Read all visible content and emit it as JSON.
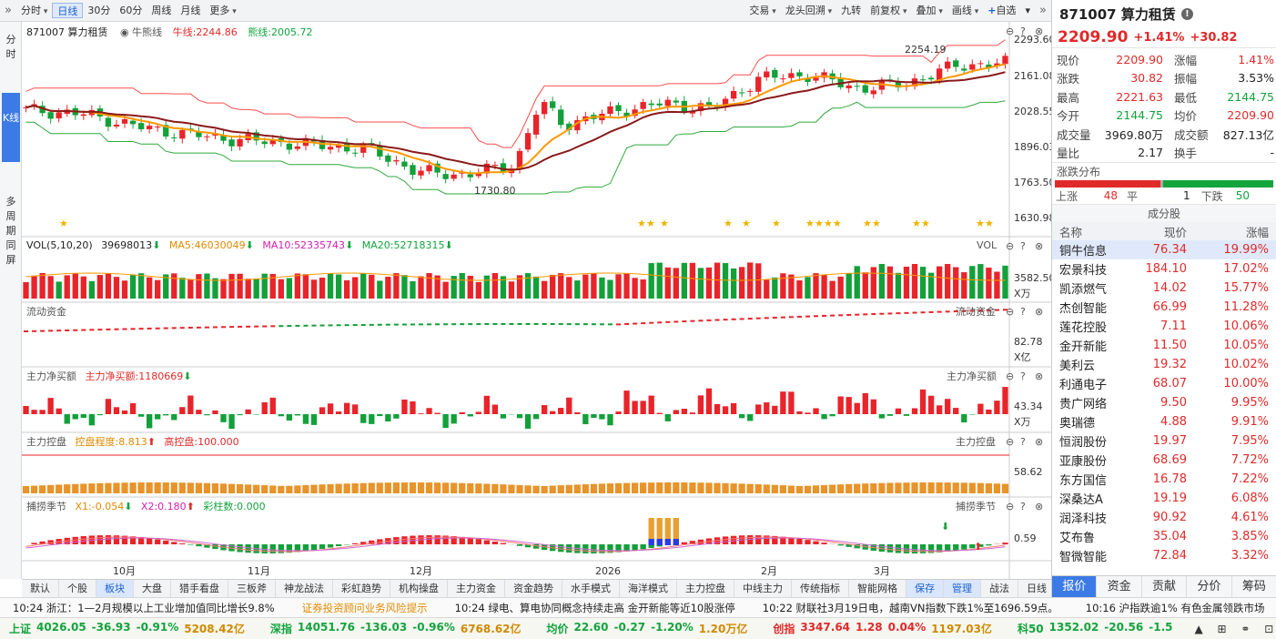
{
  "toolbar": {
    "left": [
      "分时",
      "日线",
      "30分",
      "60分",
      "周线",
      "月线",
      "更多"
    ],
    "active": "日线",
    "right": [
      "交易",
      "龙头回溯",
      "九转",
      "前复权",
      "叠加",
      "画线",
      "自选"
    ]
  },
  "left_tabs": {
    "t1": "分时",
    "t2": "K线",
    "t3": "多周期同屏"
  },
  "stock": {
    "code": "871007",
    "name": "算力租赁",
    "title": "871007 算力租赁",
    "price": "2209.90",
    "pct": "+1.41%",
    "chg": "+30.82"
  },
  "kline": {
    "legend_name": "871007 算力租赁",
    "indicator": "牛熊线",
    "bull_label": "牛线:2244.86",
    "bear_label": "熊线:2005.72",
    "high_label": "2254.19",
    "low_label": "1730.80",
    "yticks": [
      "2293.60",
      "2161.08",
      "2028.55",
      "1896.03",
      "1763.50",
      "1630.98"
    ]
  },
  "vol": {
    "title": "VOL(5,10,20)",
    "v": "39698013",
    "ma5": "MA5:46030049",
    "ma10": "MA10:52335743",
    "ma20": "MA20:52718315",
    "tag": "VOL",
    "tick": "3582.50",
    "unit": "X万"
  },
  "flow": {
    "title": "流动资金",
    "tag": "流动资金",
    "tick": "82.78",
    "unit": "X亿"
  },
  "netbuy": {
    "title": "主力净买额",
    "label": "主力净买额:1180669",
    "tag": "主力净买额",
    "tick": "43.34",
    "unit": "X万"
  },
  "control": {
    "title": "主力控盘",
    "degree": "控盘程度:8.813",
    "high": "高控盘:100.000",
    "tag": "主力控盘",
    "tick": "58.62"
  },
  "season": {
    "title": "捕捞季节",
    "x1": "X1:-0.054",
    "x2": "X2:0.180",
    "bars": "彩柱数:0.000",
    "tag": "捕捞季节",
    "tick": "0.59"
  },
  "xaxis": [
    "10月",
    "11月",
    "12月",
    "2026",
    "2月",
    "3月"
  ],
  "bottom_tabs": [
    "默认",
    "个股",
    "板块",
    "大盘",
    "猎手看盘",
    "三板斧",
    "神龙战法",
    "彩虹趋势",
    "机构操盘",
    "主力资金",
    "资金趋势",
    "水手模式",
    "海洋模式",
    "主力控盘",
    "中线主力",
    "传统指标",
    "智能网格"
  ],
  "bottom_active": "板块",
  "bottom_right": [
    "保存",
    "管理",
    "战法",
    "日线"
  ],
  "quote": [
    [
      "现价",
      "2209.90",
      "red",
      "涨幅",
      "1.41%",
      "red"
    ],
    [
      "涨跌",
      "30.82",
      "red",
      "振幅",
      "3.53%",
      "blk"
    ],
    [
      "最高",
      "2221.63",
      "red",
      "最低",
      "2144.75",
      "green"
    ],
    [
      "今开",
      "2144.75",
      "green",
      "均价",
      "2209.90",
      "red"
    ],
    [
      "成交量",
      "3969.80万",
      "blk",
      "成交额",
      "827.13亿",
      "blk"
    ],
    [
      "量比",
      "2.17",
      "blk",
      "换手",
      "-",
      "blk"
    ]
  ],
  "dist": {
    "title": "涨跌分布",
    "up_label": "上涨",
    "up": "48",
    "flat_label": "平",
    "flat": "1",
    "down_label": "下跌",
    "down": "50"
  },
  "constituents": {
    "title": "成分股",
    "cols": [
      "名称",
      "现价",
      "涨幅"
    ],
    "rows": [
      [
        "铜牛信息",
        "76.34",
        "19.99%"
      ],
      [
        "宏景科技",
        "184.10",
        "17.02%"
      ],
      [
        "凯添燃气",
        "14.02",
        "15.77%"
      ],
      [
        "杰创智能",
        "66.99",
        "11.28%"
      ],
      [
        "莲花控股",
        "7.11",
        "10.06%"
      ],
      [
        "金开新能",
        "11.50",
        "10.05%"
      ],
      [
        "美利云",
        "19.32",
        "10.02%"
      ],
      [
        "利通电子",
        "68.07",
        "10.00%"
      ],
      [
        "贵广网络",
        "9.50",
        "9.95%"
      ],
      [
        "奥瑞德",
        "4.88",
        "9.91%"
      ],
      [
        "恒润股份",
        "19.97",
        "7.95%"
      ],
      [
        "亚康股份",
        "68.69",
        "7.72%"
      ],
      [
        "东方国信",
        "16.78",
        "7.22%"
      ],
      [
        "深桑达A",
        "19.19",
        "6.08%"
      ],
      [
        "润泽科技",
        "90.92",
        "4.61%"
      ],
      [
        "艾布鲁",
        "35.04",
        "3.85%"
      ],
      [
        "智微智能",
        "72.84",
        "3.32%"
      ]
    ]
  },
  "right_tabs": [
    "报价",
    "资金",
    "贡献",
    "分价",
    "筹码"
  ],
  "news": [
    "10:24 浙江：1—2月规模以上工业增加值同比增长9.8%",
    "证券投资顾问业务风险提示",
    "10:24 绿电、算电协同概念持续走高 金开新能等近10股涨停",
    "10:22 财联社3月19日电，越南VN指数下跌1%至1696.59点。",
    "10:16 沪指跌逾1% 有色金属领跌市场"
  ],
  "indices": [
    {
      "name": "上证",
      "val": "4026.05",
      "chg": "-36.93",
      "pct": "-0.91%",
      "amt": "5208.42亿"
    },
    {
      "name": "深指",
      "val": "14051.76",
      "chg": "-136.03",
      "pct": "-0.96%",
      "amt": "6768.62亿"
    },
    {
      "name": "均价",
      "val": "22.60",
      "chg": "-0.27",
      "pct": "-1.20%",
      "amt": "1.20万亿"
    },
    {
      "name": "创指",
      "val": "3347.64",
      "chg": "1.28",
      "pct": "0.04%",
      "amt": "1197.03亿"
    },
    {
      "name": "科50",
      "val": "1352.02",
      "chg": "-20.56",
      "pct": "-1.5",
      "amt": ""
    }
  ]
}
